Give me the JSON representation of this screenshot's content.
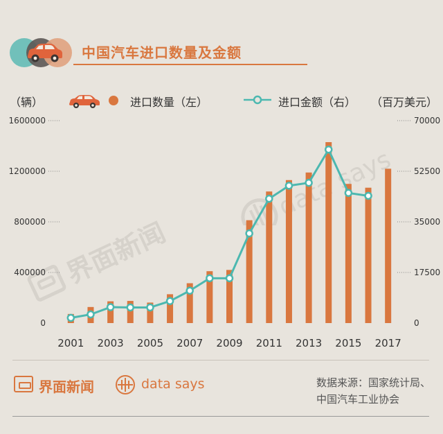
{
  "title": "中国汽车进口数量及金额",
  "legend": {
    "unit_left": "（辆）",
    "quantity_label": "进口数量（左）",
    "amount_label": "进口金额（右）",
    "unit_right": "（百万美元）"
  },
  "colors": {
    "bar": "#d9773f",
    "line": "#4cb8b0",
    "accent": "#d9773f",
    "background": "#e8e4dd"
  },
  "chart_data": {
    "type": "bar",
    "categories": [
      "2001",
      "2002",
      "2003",
      "2004",
      "2005",
      "2006",
      "2007",
      "2008",
      "2009",
      "2010",
      "2011",
      "2012",
      "2013",
      "2014",
      "2015",
      "2016",
      "2017"
    ],
    "x_tick_labels": [
      "2001",
      "2003",
      "2005",
      "2007",
      "2009",
      "2011",
      "2013",
      "2015",
      "2017"
    ],
    "series": [
      {
        "name": "进口数量（左）",
        "type": "bar",
        "axis": "left",
        "values": [
          72000,
          127000,
          172000,
          175000,
          162000,
          228000,
          315000,
          410000,
          420000,
          813000,
          1040000,
          1130000,
          1190000,
          1430000,
          1100000,
          1070000,
          1220000
        ]
      },
      {
        "name": "进口金额（右）",
        "type": "line",
        "axis": "right",
        "values": [
          1800,
          3000,
          5500,
          5400,
          5400,
          7600,
          11200,
          15500,
          15500,
          31000,
          43000,
          47500,
          48500,
          60000,
          45000,
          44000,
          null
        ]
      }
    ],
    "y_left": {
      "range": [
        0,
        1600000
      ],
      "ticks": [
        "0",
        "400000",
        "800000",
        "1200000",
        "1600000"
      ]
    },
    "y_right": {
      "range": [
        0,
        70000
      ],
      "ticks": [
        "0",
        "17500",
        "35000",
        "52500",
        "70000"
      ]
    }
  },
  "watermarks": {
    "jiemian": "界面新闻",
    "datasays": "data says"
  },
  "footer": {
    "brand1": "界面新闻",
    "brand2": "data says",
    "source_line1": "数据来源：国家统计局、",
    "source_line2": "中国汽车工业协会"
  }
}
